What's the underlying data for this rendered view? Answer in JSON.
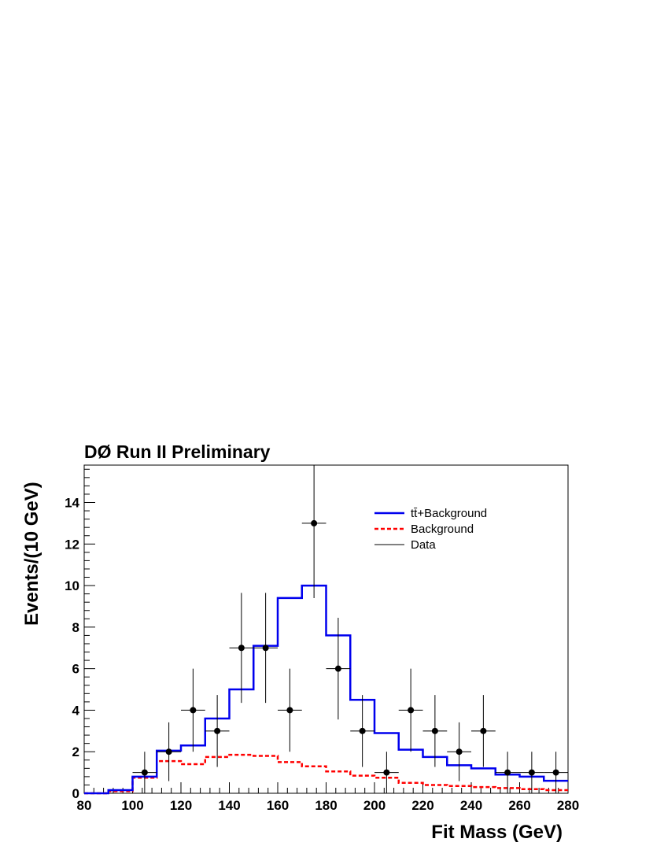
{
  "chart_data": {
    "type": "histogram",
    "title": "DØ Run II Preliminary",
    "xlabel": "Fit Mass (GeV)",
    "ylabel": "Events/(10 GeV)",
    "xlim": [
      80,
      280
    ],
    "ylim": [
      0,
      15.8
    ],
    "xticks": [
      80,
      100,
      120,
      140,
      160,
      180,
      200,
      220,
      240,
      260,
      280
    ],
    "yticks": [
      0,
      2,
      4,
      6,
      8,
      10,
      12,
      14
    ],
    "bin_edges": [
      80,
      90,
      100,
      110,
      120,
      130,
      140,
      150,
      160,
      170,
      180,
      190,
      200,
      210,
      220,
      230,
      240,
      250,
      260,
      270,
      280
    ],
    "series": [
      {
        "name": "tt̄+Background",
        "style": "step",
        "color": "#0000ee",
        "values": [
          0.0,
          0.15,
          0.8,
          2.05,
          2.3,
          3.6,
          5.0,
          7.1,
          9.4,
          10.0,
          7.6,
          4.5,
          2.9,
          2.1,
          1.75,
          1.35,
          1.2,
          0.9,
          0.8,
          0.6
        ]
      },
      {
        "name": "Background",
        "style": "dashed-step",
        "color": "#ff0000",
        "values": [
          0.0,
          0.1,
          0.75,
          1.55,
          1.4,
          1.75,
          1.85,
          1.8,
          1.5,
          1.3,
          1.05,
          0.85,
          0.75,
          0.5,
          0.4,
          0.35,
          0.3,
          0.25,
          0.2,
          0.15
        ]
      },
      {
        "name": "Data",
        "style": "points",
        "color": "#000000",
        "x": [
          105,
          115,
          125,
          135,
          145,
          155,
          165,
          175,
          185,
          195,
          205,
          215,
          225,
          235,
          245,
          255,
          265,
          275
        ],
        "values": [
          1,
          2,
          4,
          3,
          7,
          7,
          4,
          13,
          6,
          3,
          1,
          4,
          3,
          2,
          3,
          1,
          1,
          1
        ]
      }
    ],
    "legend": {
      "position": "top-right",
      "entries": [
        "tt̄+Background",
        "Background",
        "Data"
      ]
    },
    "grid": false
  }
}
